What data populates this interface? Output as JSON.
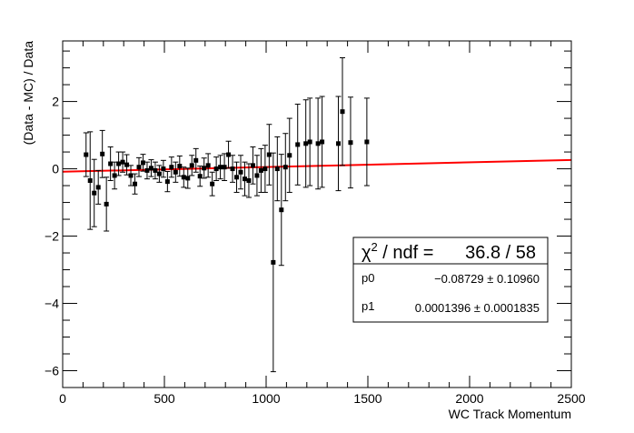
{
  "chart_data": {
    "type": "scatter",
    "title": "",
    "xlabel": "WC Track Momentum",
    "ylabel": "(Data - MC) / Data",
    "xlim": [
      0,
      2500
    ],
    "ylim": [
      -6.5,
      3.8
    ],
    "xticks": [
      0,
      500,
      1000,
      1500,
      2000,
      2500
    ],
    "xtick_labels": [
      "0",
      "500",
      "1000",
      "1500",
      "2000",
      "2500"
    ],
    "yticks": [
      -6,
      -4,
      -2,
      0,
      2
    ],
    "ytick_labels": [
      "−6",
      "−4",
      "−2",
      "0",
      "2"
    ],
    "grid": false,
    "marker_color": "#000000",
    "fit_color": "#ff0000",
    "points": [
      {
        "x": 115,
        "y": 0.42,
        "err": 0.65
      },
      {
        "x": 135,
        "y": -0.35,
        "err": 1.45
      },
      {
        "x": 155,
        "y": -0.72,
        "err": 1.0
      },
      {
        "x": 175,
        "y": -0.55,
        "err": 0.5
      },
      {
        "x": 195,
        "y": 0.44,
        "err": 0.7
      },
      {
        "x": 215,
        "y": -1.05,
        "err": 0.8
      },
      {
        "x": 235,
        "y": 0.15,
        "err": 0.5
      },
      {
        "x": 255,
        "y": -0.2,
        "err": 0.4
      },
      {
        "x": 275,
        "y": 0.15,
        "err": 0.35
      },
      {
        "x": 295,
        "y": 0.2,
        "err": 0.3
      },
      {
        "x": 315,
        "y": 0.12,
        "err": 0.3
      },
      {
        "x": 335,
        "y": -0.2,
        "err": 0.3
      },
      {
        "x": 355,
        "y": -0.45,
        "err": 0.3
      },
      {
        "x": 375,
        "y": 0.05,
        "err": 0.28
      },
      {
        "x": 395,
        "y": 0.18,
        "err": 0.25
      },
      {
        "x": 415,
        "y": -0.05,
        "err": 0.25
      },
      {
        "x": 435,
        "y": 0.02,
        "err": 0.25
      },
      {
        "x": 455,
        "y": -0.05,
        "err": 0.25
      },
      {
        "x": 475,
        "y": -0.15,
        "err": 0.25
      },
      {
        "x": 495,
        "y": 0.0,
        "err": 0.25
      },
      {
        "x": 515,
        "y": -0.38,
        "err": 0.3
      },
      {
        "x": 535,
        "y": 0.05,
        "err": 0.3
      },
      {
        "x": 555,
        "y": -0.1,
        "err": 0.3
      },
      {
        "x": 575,
        "y": 0.08,
        "err": 0.3
      },
      {
        "x": 595,
        "y": -0.25,
        "err": 0.3
      },
      {
        "x": 615,
        "y": -0.28,
        "err": 0.3
      },
      {
        "x": 635,
        "y": 0.1,
        "err": 0.3
      },
      {
        "x": 655,
        "y": 0.25,
        "err": 0.35
      },
      {
        "x": 675,
        "y": -0.22,
        "err": 0.3
      },
      {
        "x": 695,
        "y": 0.02,
        "err": 0.3
      },
      {
        "x": 715,
        "y": 0.1,
        "err": 0.35
      },
      {
        "x": 735,
        "y": -0.45,
        "err": 0.35
      },
      {
        "x": 755,
        "y": 0.0,
        "err": 0.35
      },
      {
        "x": 775,
        "y": 0.05,
        "err": 0.35
      },
      {
        "x": 795,
        "y": 0.05,
        "err": 0.4
      },
      {
        "x": 815,
        "y": 0.42,
        "err": 0.4
      },
      {
        "x": 835,
        "y": 0.0,
        "err": 0.4
      },
      {
        "x": 855,
        "y": -0.25,
        "err": 0.45
      },
      {
        "x": 875,
        "y": -0.1,
        "err": 0.5
      },
      {
        "x": 895,
        "y": -0.3,
        "err": 0.5
      },
      {
        "x": 915,
        "y": -0.35,
        "err": 0.5
      },
      {
        "x": 935,
        "y": 0.1,
        "err": 0.55
      },
      {
        "x": 955,
        "y": -0.2,
        "err": 0.6
      },
      {
        "x": 975,
        "y": -0.05,
        "err": 0.65
      },
      {
        "x": 995,
        "y": 0.0,
        "err": 0.7
      },
      {
        "x": 1015,
        "y": 0.42,
        "err": 0.9
      },
      {
        "x": 1035,
        "y": -2.78,
        "err": 3.25
      },
      {
        "x": 1055,
        "y": 0.0,
        "err": 0.95
      },
      {
        "x": 1075,
        "y": -1.22,
        "err": 1.65
      },
      {
        "x": 1095,
        "y": 0.05,
        "err": 1.0
      },
      {
        "x": 1115,
        "y": 0.4,
        "err": 1.1
      },
      {
        "x": 1155,
        "y": 0.72,
        "err": 1.2
      },
      {
        "x": 1195,
        "y": 0.75,
        "err": 1.3
      },
      {
        "x": 1215,
        "y": 0.8,
        "err": 1.3
      },
      {
        "x": 1255,
        "y": 0.75,
        "err": 1.35
      },
      {
        "x": 1275,
        "y": 0.8,
        "err": 1.35
      },
      {
        "x": 1355,
        "y": 0.75,
        "err": 1.4
      },
      {
        "x": 1375,
        "y": 1.7,
        "err": 1.6
      },
      {
        "x": 1415,
        "y": 0.78,
        "err": 1.35
      },
      {
        "x": 1495,
        "y": 0.8,
        "err": 1.3
      }
    ],
    "fit": {
      "p0": -0.08729,
      "p1": 0.0001396,
      "x_range": [
        0,
        2500
      ]
    },
    "stats": {
      "chi2_label": "χ",
      "chi2_sup": "2",
      "chi2_rest": " / ndf = ",
      "chi2_value": "36.8 / 58",
      "rows": [
        {
          "name": "p0",
          "value": "−0.08729 ± 0.10960"
        },
        {
          "name": "p1",
          "value": "0.0001396 ± 0.0001835"
        }
      ]
    }
  }
}
